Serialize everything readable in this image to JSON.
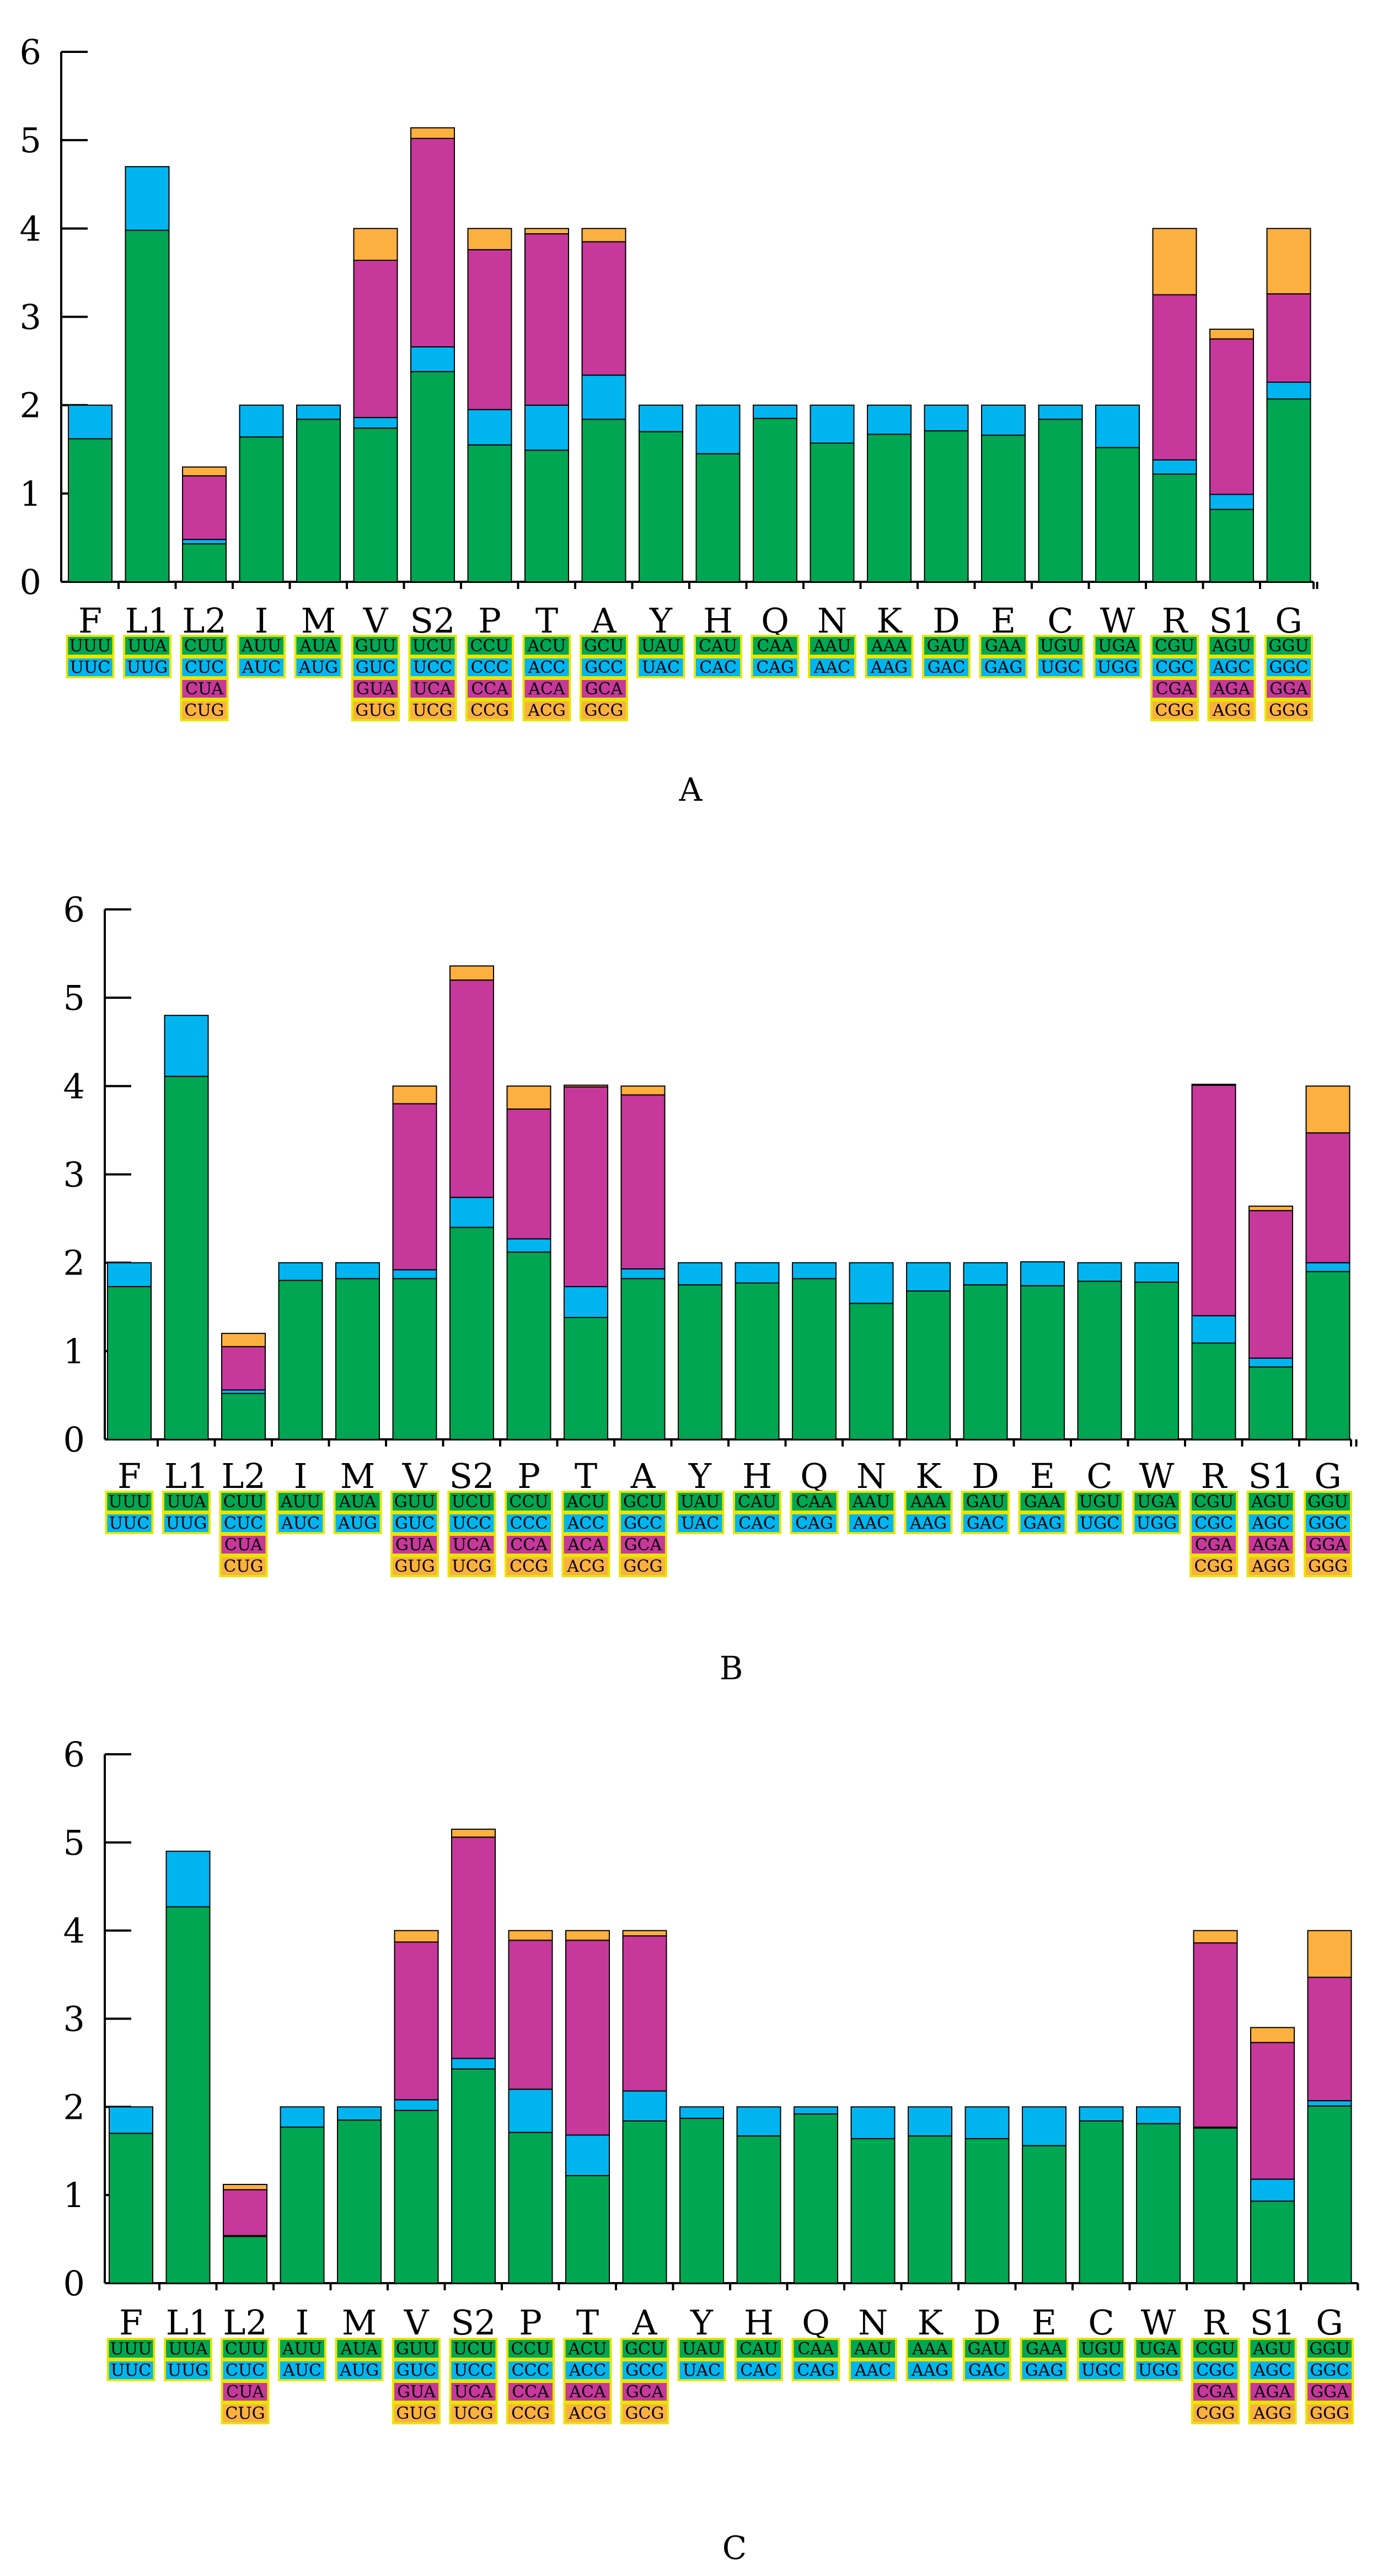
{
  "figure": {
    "colors": {
      "c1": "#00a651",
      "c2": "#00b5ef",
      "c3": "#c6389a",
      "c4": "#fbb040",
      "codon_border": "#e6e600"
    },
    "amino_acids": [
      "F",
      "L1",
      "L2",
      "I",
      "M",
      "V",
      "S2",
      "P",
      "T",
      "A",
      "Y",
      "H",
      "Q",
      "N",
      "K",
      "D",
      "E",
      "C",
      "W",
      "R",
      "S1",
      "G"
    ],
    "codons": [
      [
        "UUU",
        "UUC"
      ],
      [
        "UUA",
        "UUG"
      ],
      [
        "CUU",
        "CUC",
        "CUA",
        "CUG"
      ],
      [
        "AUU",
        "AUC"
      ],
      [
        "AUA",
        "AUG"
      ],
      [
        "GUU",
        "GUC",
        "GUA",
        "GUG"
      ],
      [
        "UCU",
        "UCC",
        "UCA",
        "UCG"
      ],
      [
        "CCU",
        "CCC",
        "CCA",
        "CCG"
      ],
      [
        "ACU",
        "ACC",
        "ACA",
        "ACG"
      ],
      [
        "GCU",
        "GCC",
        "GCA",
        "GCG"
      ],
      [
        "UAU",
        "UAC"
      ],
      [
        "CAU",
        "CAC"
      ],
      [
        "CAA",
        "CAG"
      ],
      [
        "AAU",
        "AAC"
      ],
      [
        "AAA",
        "AAG"
      ],
      [
        "GAU",
        "GAC"
      ],
      [
        "GAA",
        "GAG"
      ],
      [
        "UGU",
        "UGC"
      ],
      [
        "UGA",
        "UGG"
      ],
      [
        "CGU",
        "CGC",
        "CGA",
        "CGG"
      ],
      [
        "AGU",
        "AGC",
        "AGA",
        "AGG"
      ],
      [
        "GGU",
        "GGC",
        "GGA",
        "GGG"
      ]
    ]
  },
  "chart_data": [
    {
      "type": "bar",
      "panel_label": "A",
      "stacked": true,
      "ylim": [
        0,
        6
      ],
      "yticks": [
        "0",
        "1",
        "2",
        "3",
        "4",
        "5",
        "6"
      ],
      "categories": [
        "F",
        "L1",
        "L2",
        "I",
        "M",
        "V",
        "S2",
        "P",
        "T",
        "A",
        "Y",
        "H",
        "Q",
        "N",
        "K",
        "D",
        "E",
        "C",
        "W",
        "R",
        "S1",
        "G"
      ],
      "series": [
        {
          "name": "codon 1",
          "values": [
            1.62,
            3.98,
            0.43,
            1.64,
            1.84,
            1.74,
            2.38,
            1.55,
            1.49,
            1.84,
            1.7,
            1.45,
            1.85,
            1.57,
            1.67,
            1.71,
            1.66,
            1.84,
            1.52,
            1.22,
            0.82,
            2.07
          ]
        },
        {
          "name": "codon 2",
          "values": [
            0.38,
            0.72,
            0.05,
            0.36,
            0.16,
            0.12,
            0.28,
            0.4,
            0.51,
            0.5,
            0.3,
            0.55,
            0.15,
            0.43,
            0.33,
            0.29,
            0.34,
            0.16,
            0.48,
            0.16,
            0.17,
            0.19
          ]
        },
        {
          "name": "codon 3",
          "values": [
            0,
            0,
            0.72,
            0,
            0,
            1.78,
            2.36,
            1.81,
            1.94,
            1.51,
            0,
            0,
            0,
            0,
            0,
            0,
            0,
            0,
            0,
            1.87,
            1.76,
            1.0
          ]
        },
        {
          "name": "codon 4",
          "values": [
            0,
            0,
            0.1,
            0,
            0,
            0.36,
            0.12,
            0.24,
            0.06,
            0.15,
            0,
            0,
            0,
            0,
            0,
            0,
            0,
            0,
            0,
            0.75,
            0.11,
            0.74
          ]
        }
      ]
    },
    {
      "type": "bar",
      "panel_label": "B",
      "stacked": true,
      "ylim": [
        0,
        6
      ],
      "yticks": [
        "0",
        "1",
        "2",
        "3",
        "4",
        "5",
        "6"
      ],
      "categories": [
        "F",
        "L1",
        "L2",
        "I",
        "M",
        "V",
        "S2",
        "P",
        "T",
        "A",
        "Y",
        "H",
        "Q",
        "N",
        "K",
        "D",
        "E",
        "C",
        "W",
        "R",
        "S1",
        "G"
      ],
      "series": [
        {
          "name": "codon 1",
          "values": [
            1.73,
            4.11,
            0.52,
            1.8,
            1.82,
            1.82,
            2.4,
            2.12,
            1.38,
            1.82,
            1.75,
            1.77,
            1.82,
            1.54,
            1.68,
            1.75,
            1.74,
            1.79,
            1.78,
            1.09,
            0.82,
            1.9
          ]
        },
        {
          "name": "codon 2",
          "values": [
            0.27,
            0.69,
            0.04,
            0.2,
            0.18,
            0.1,
            0.34,
            0.15,
            0.35,
            0.11,
            0.25,
            0.23,
            0.18,
            0.46,
            0.32,
            0.25,
            0.27,
            0.21,
            0.22,
            0.31,
            0.1,
            0.1
          ]
        },
        {
          "name": "codon 3",
          "values": [
            0,
            0,
            0.49,
            0,
            0,
            1.88,
            2.46,
            1.47,
            2.26,
            1.97,
            0,
            0,
            0,
            0,
            0,
            0,
            0,
            0,
            0,
            2.61,
            1.67,
            1.47
          ]
        },
        {
          "name": "codon 4",
          "values": [
            0,
            0,
            0.15,
            0,
            0,
            0.2,
            0.16,
            0.26,
            0.02,
            0.1,
            0,
            0,
            0,
            0,
            0,
            0,
            0,
            0,
            0,
            0.01,
            0.05,
            0.53
          ]
        }
      ]
    },
    {
      "type": "bar",
      "panel_label": "C",
      "stacked": true,
      "ylim": [
        0,
        6
      ],
      "yticks": [
        "0",
        "1",
        "2",
        "3",
        "4",
        "5",
        "6"
      ],
      "categories": [
        "F",
        "L1",
        "L2",
        "I",
        "M",
        "V",
        "S2",
        "P",
        "T",
        "A",
        "Y",
        "H",
        "Q",
        "N",
        "K",
        "D",
        "E",
        "C",
        "W",
        "R",
        "S1",
        "G"
      ],
      "series": [
        {
          "name": "codon 1",
          "values": [
            1.7,
            4.27,
            0.53,
            1.77,
            1.85,
            1.96,
            2.43,
            1.71,
            1.22,
            1.84,
            1.87,
            1.67,
            1.92,
            1.64,
            1.67,
            1.64,
            1.56,
            1.84,
            1.81,
            1.76,
            0.93,
            2.01
          ]
        },
        {
          "name": "codon 2",
          "values": [
            0.3,
            0.63,
            0.01,
            0.23,
            0.15,
            0.12,
            0.12,
            0.49,
            0.46,
            0.34,
            0.13,
            0.33,
            0.08,
            0.36,
            0.33,
            0.36,
            0.44,
            0.16,
            0.19,
            0.01,
            0.25,
            0.06
          ]
        },
        {
          "name": "codon 3",
          "values": [
            0,
            0,
            0.52,
            0,
            0,
            1.79,
            2.51,
            1.69,
            2.21,
            1.76,
            0,
            0,
            0,
            0,
            0,
            0,
            0,
            0,
            0,
            2.09,
            1.55,
            1.4
          ]
        },
        {
          "name": "codon 4",
          "values": [
            0,
            0,
            0.06,
            0,
            0,
            0.13,
            0.09,
            0.11,
            0.11,
            0.06,
            0,
            0,
            0,
            0,
            0,
            0,
            0,
            0,
            0,
            0.14,
            0.17,
            0.53
          ]
        }
      ]
    }
  ]
}
